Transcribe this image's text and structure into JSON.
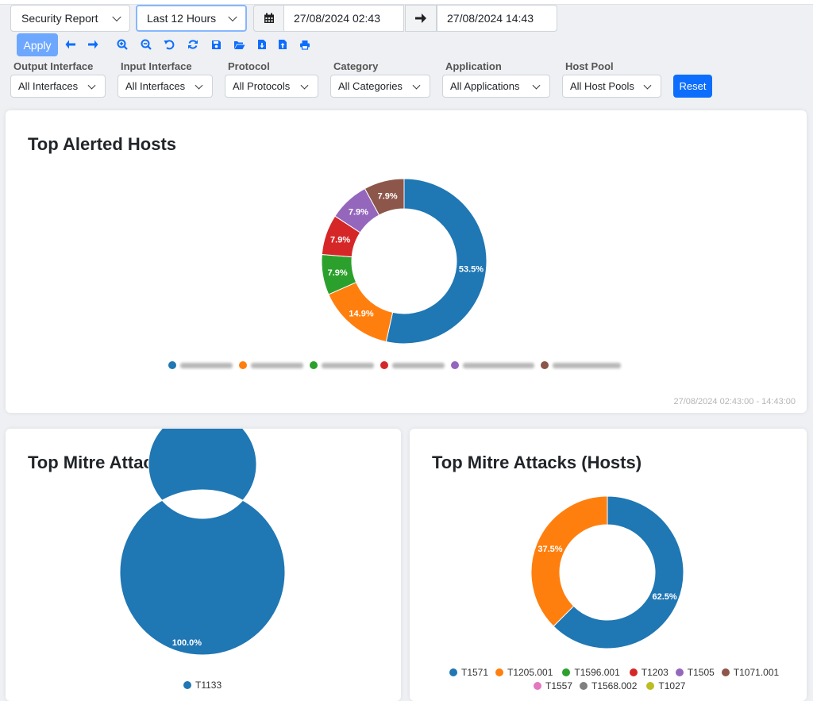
{
  "toolbar": {
    "report_select": "Security Report",
    "range_select": "Last 12 Hours",
    "date_begin": "27/08/2024 02:43",
    "date_end": "27/08/2024 14:43",
    "apply_label": "Apply"
  },
  "filters": [
    {
      "label": "Output Interface",
      "value": "All Interfaces"
    },
    {
      "label": "Input Interface",
      "value": "All Interfaces"
    },
    {
      "label": "Protocol",
      "value": "All Protocols"
    },
    {
      "label": "Category",
      "value": "All Categories"
    },
    {
      "label": "Application",
      "value": "All Applications"
    },
    {
      "label": "Host Pool",
      "value": "All Host Pools"
    }
  ],
  "reset_label": "Reset",
  "colors": {
    "blue": "#1f77b4",
    "orange": "#ff7f0e",
    "green": "#2ca02c",
    "red": "#d62728",
    "purple": "#9467bd",
    "brown": "#8c564b",
    "pink": "#e377c2",
    "gray": "#7f7f7f",
    "olive": "#bcbd22"
  },
  "cards": {
    "alerted_hosts": {
      "title": "Top Alerted Hosts",
      "time_range": "27/08/2024 02:43:00 - 14:43:00"
    },
    "mitre_flows": {
      "title": "Top Mitre Attacks (Flows)"
    },
    "mitre_hosts": {
      "title": "Top Mitre Attacks (Hosts)"
    }
  },
  "chart_data": [
    {
      "type": "pie",
      "title": "Top Alerted Hosts",
      "labels": [
        "",
        "",
        "",
        "",
        "",
        ""
      ],
      "values": [
        53.5,
        14.9,
        7.9,
        7.9,
        7.9,
        7.9
      ],
      "value_labels": [
        "53.5%",
        "14.9%",
        "7.9%",
        "7.9%",
        "7.9%",
        "7.9%"
      ],
      "colors": [
        "#1f77b4",
        "#ff7f0e",
        "#2ca02c",
        "#d62728",
        "#9467bd",
        "#8c564b"
      ],
      "legend": "bottom"
    },
    {
      "type": "pie",
      "title": "Top Mitre Attacks (Flows)",
      "labels": [
        "T1133"
      ],
      "values": [
        100.0
      ],
      "value_labels": [
        "100.0%"
      ],
      "colors": [
        "#1f77b4"
      ],
      "legend": "bottom"
    },
    {
      "type": "pie",
      "title": "Top Mitre Attacks (Hosts)",
      "labels": [
        "T1571",
        "T1205.001",
        "T1596.001",
        "T1203",
        "T1505",
        "T1071.001",
        "T1557",
        "T1568.002",
        "T1027"
      ],
      "values": [
        62.5,
        37.5,
        0,
        0,
        0,
        0,
        0,
        0,
        0
      ],
      "value_labels": [
        "62.5%",
        "37.5%",
        "",
        "",
        "",
        "",
        "",
        "",
        ""
      ],
      "colors": [
        "#1f77b4",
        "#ff7f0e",
        "#2ca02c",
        "#d62728",
        "#9467bd",
        "#8c564b",
        "#e377c2",
        "#7f7f7f",
        "#bcbd22"
      ],
      "legend": "bottom"
    }
  ]
}
